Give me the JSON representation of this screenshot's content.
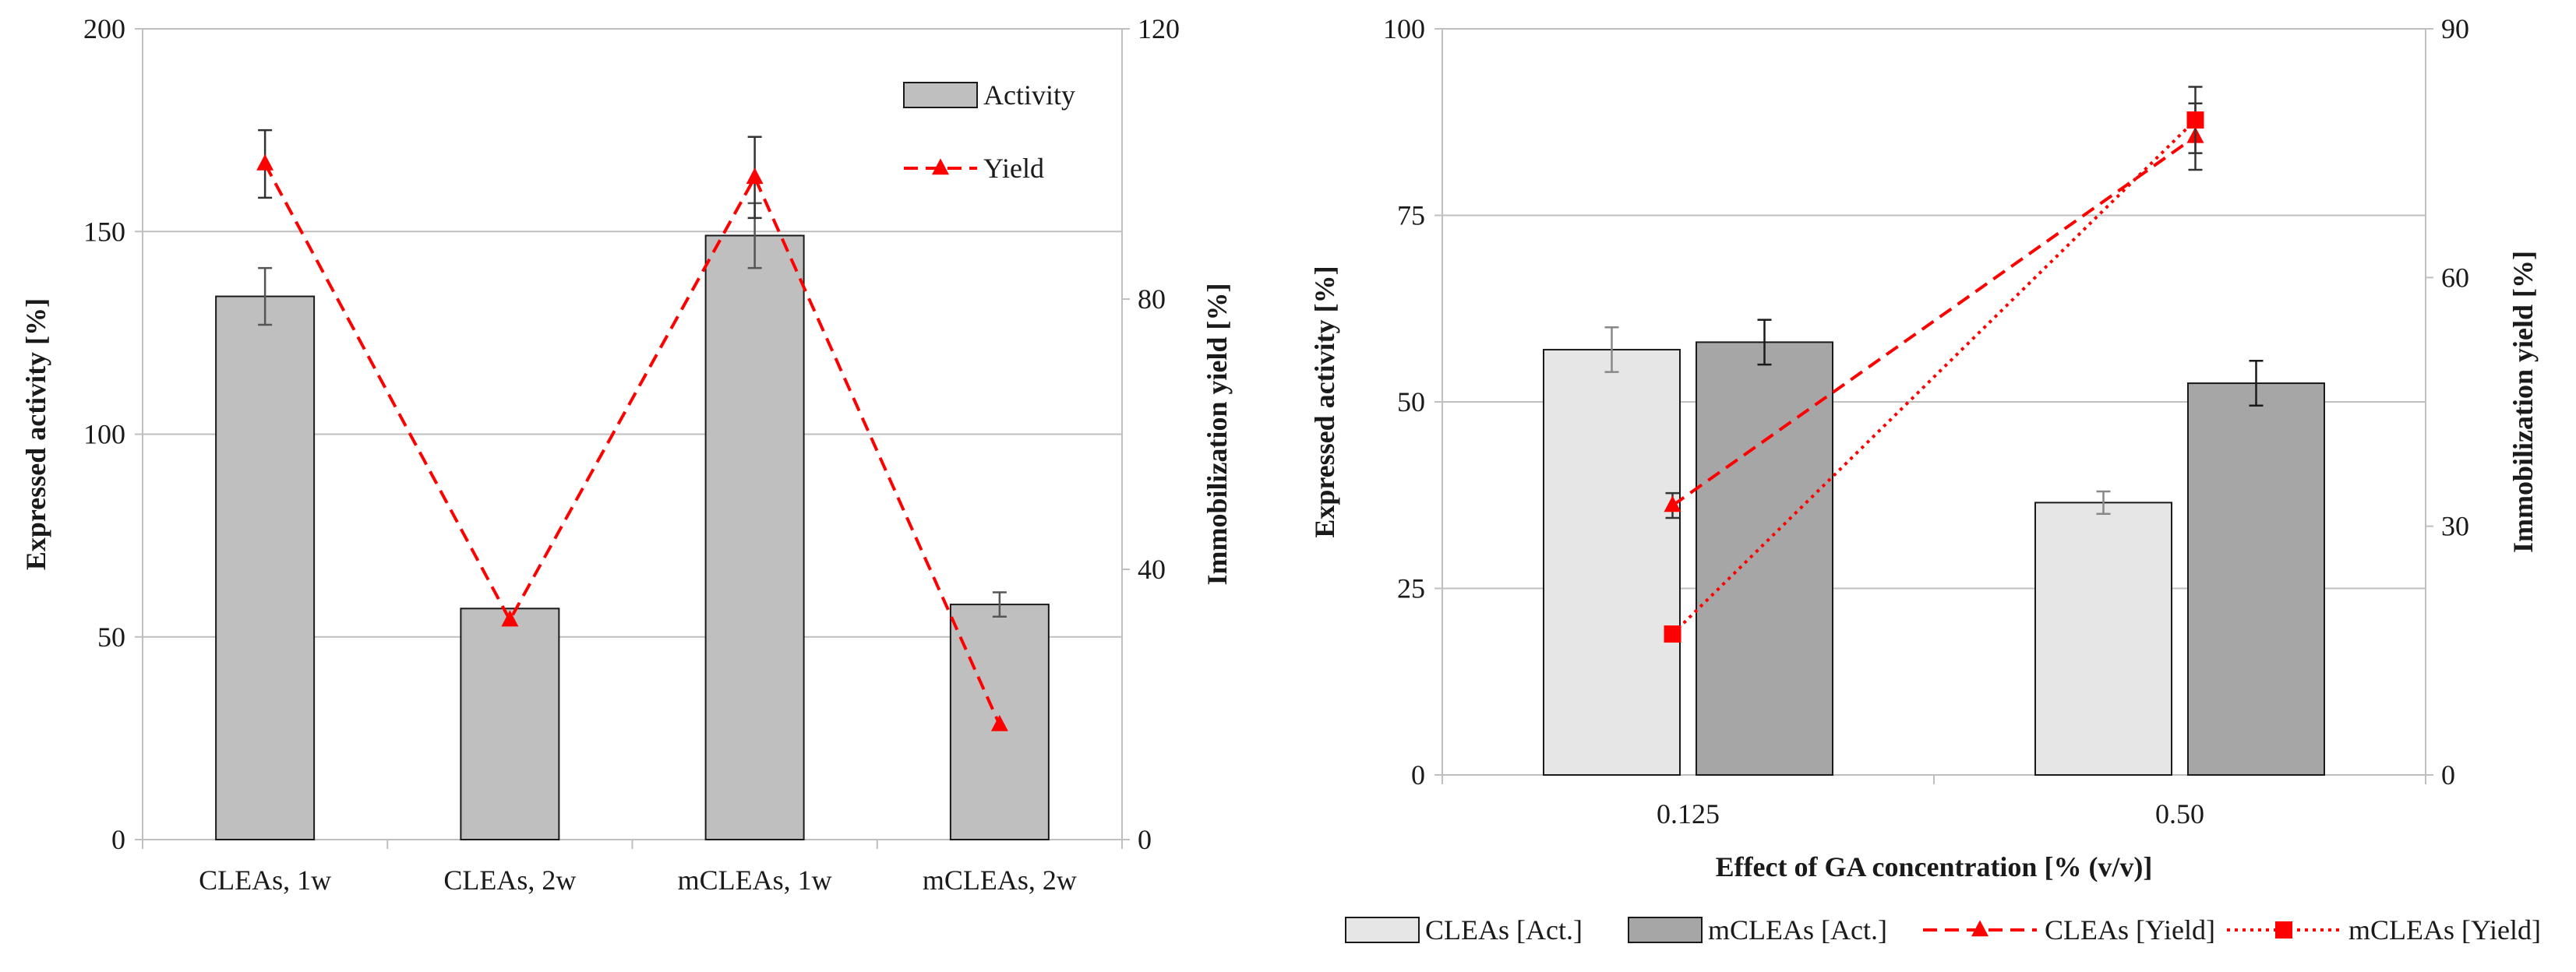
{
  "chart_data": [
    {
      "type": "bar",
      "title": "",
      "categories": [
        "CLEAs, 1w",
        "CLEAs, 2w",
        "mCLEAs, 1w",
        "mCLEAs, 2w"
      ],
      "ylabel": "Expressed activity [%]",
      "y2label": "Immobilization yield [%]",
      "ylim": [
        0,
        200
      ],
      "yticks": [
        "0",
        "50",
        "100",
        "150",
        "200"
      ],
      "y2lim": [
        0,
        120
      ],
      "y2ticks": [
        "0",
        "40",
        "80",
        "120"
      ],
      "grid": true,
      "legend_position": "top-right",
      "series": [
        {
          "name": "Activity",
          "type": "bar",
          "axis": "left",
          "color": "#bfbfbf",
          "values": [
            134,
            57,
            149,
            58
          ],
          "errors": [
            7,
            0,
            8,
            3
          ]
        },
        {
          "name": "Yield",
          "type": "line",
          "axis": "right",
          "color": "#ff0000",
          "marker": "triangle",
          "line_style": "dashed",
          "values": [
            100,
            32.5,
            98,
            17
          ],
          "errors": [
            5,
            0,
            6,
            0
          ]
        }
      ]
    },
    {
      "type": "bar",
      "title": "",
      "categories": [
        "0.125",
        "0.50"
      ],
      "xlabel": "Effect of GA concentration [% (v/v)]",
      "ylabel": "Expressed activity [%]",
      "y2label": "Immobilization yield [%]",
      "ylim": [
        0,
        100
      ],
      "yticks": [
        "0",
        "25",
        "50",
        "75",
        "100"
      ],
      "y2lim": [
        0,
        90
      ],
      "y2ticks": [
        "0",
        "30",
        "60",
        "90"
      ],
      "grid": true,
      "legend_position": "bottom",
      "series": [
        {
          "name": "CLEAs [Act.]",
          "type": "bar",
          "axis": "left",
          "color": "#e6e6e6",
          "values": [
            57,
            36.5
          ],
          "errors": [
            3,
            1.5
          ]
        },
        {
          "name": "mCLEAs [Act.]",
          "type": "bar",
          "axis": "left",
          "color": "#a6a6a6",
          "values": [
            58,
            52.5
          ],
          "errors": [
            3,
            3
          ]
        },
        {
          "name": "CLEAs [Yield]",
          "type": "line",
          "axis": "right",
          "color": "#ff0000",
          "marker": "triangle",
          "line_style": "dashed",
          "values": [
            32.5,
            77
          ],
          "errors": [
            1.5,
            4
          ]
        },
        {
          "name": "mCLEAs [Yield]",
          "type": "line",
          "axis": "right",
          "color": "#ff0000",
          "marker": "square",
          "line_style": "dotted",
          "values": [
            17,
            79
          ],
          "errors": [
            0,
            4
          ]
        }
      ]
    }
  ]
}
